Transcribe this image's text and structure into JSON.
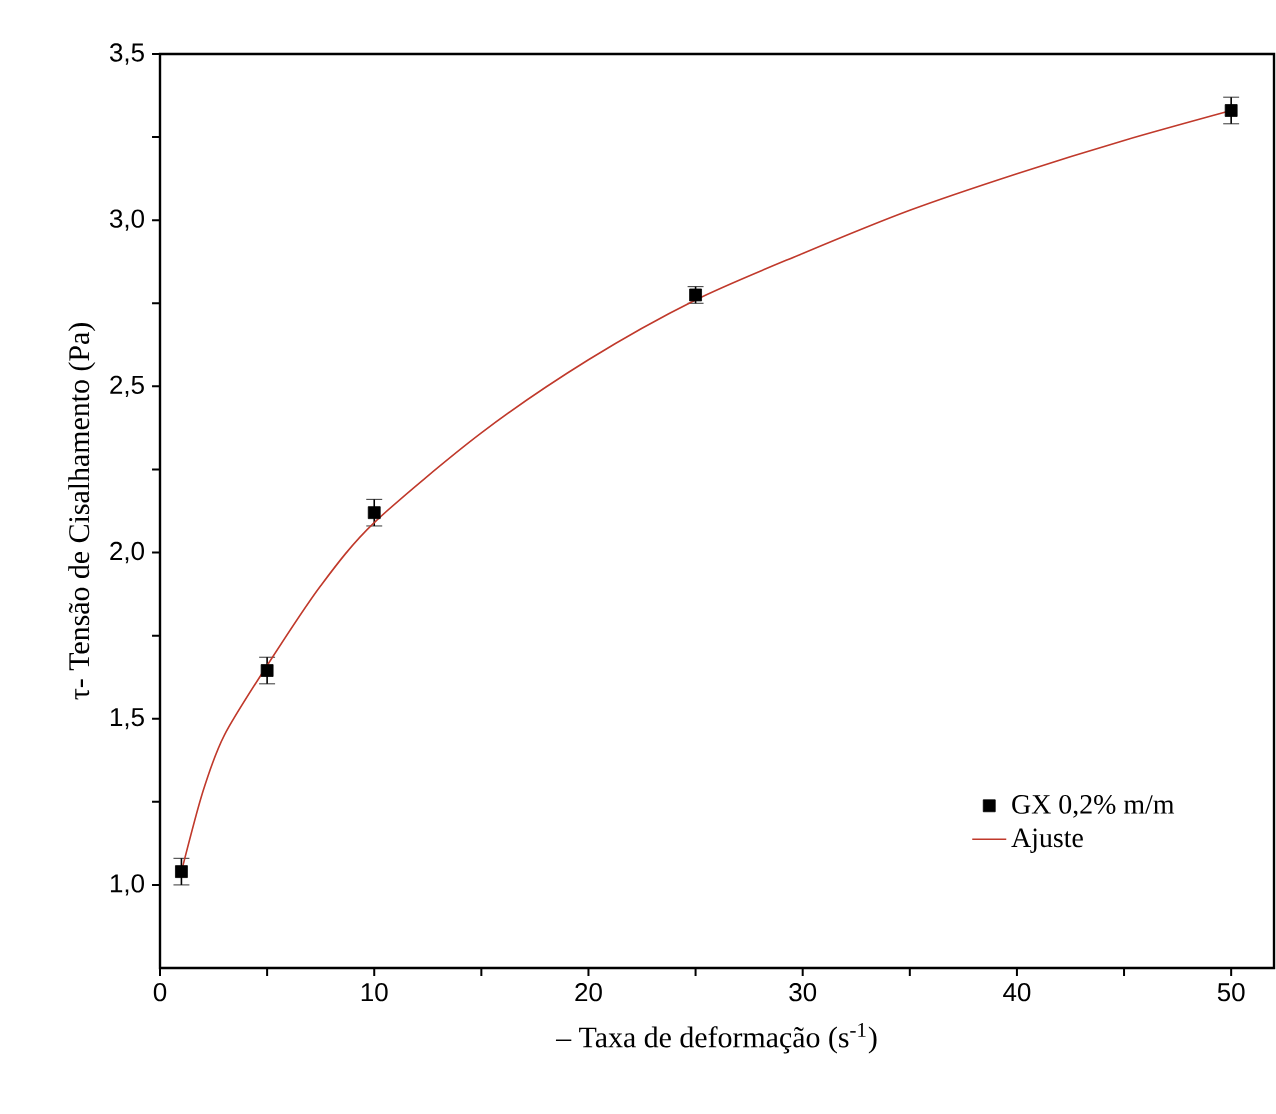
{
  "chart_data": {
    "type": "scatter",
    "xlabel": "– Taxa de deformação (s$^{-1}$)",
    "ylabel": "τ- Tensão de Cisalhamento (Pa)",
    "xlim": [
      0,
      52
    ],
    "ylim": [
      0.75,
      3.5
    ],
    "xticks": [
      0,
      {
        "value": 5,
        "label": null
      },
      10,
      {
        "value": 15,
        "label": null
      },
      20,
      {
        "value": 25,
        "label": null
      },
      30,
      {
        "value": 35,
        "label": null
      },
      40,
      {
        "value": 45,
        "label": null
      },
      50
    ],
    "yticks": [
      {
        "value": 1.0,
        "label": "1,0"
      },
      {
        "value": 1.25,
        "label": null
      },
      {
        "value": 1.5,
        "label": "1,5"
      },
      {
        "value": 1.75,
        "label": null
      },
      {
        "value": 2.0,
        "label": "2,0"
      },
      {
        "value": 2.25,
        "label": null
      },
      {
        "value": 2.5,
        "label": "2,5"
      },
      {
        "value": 2.75,
        "label": null
      },
      {
        "value": 3.0,
        "label": "3,0"
      },
      {
        "value": 3.25,
        "label": null
      },
      {
        "value": 3.5,
        "label": "3,5"
      }
    ],
    "legend": "bottom right",
    "grid": false,
    "series": [
      {
        "name": "GX 0,2% m/m",
        "marker": "square",
        "color": "#000000",
        "x": [
          1,
          5,
          10,
          25,
          50
        ],
        "values": [
          1.04,
          1.645,
          2.12,
          2.775,
          3.33
        ],
        "errors": [
          0.04,
          0.04,
          0.04,
          0.025,
          0.04
        ]
      },
      {
        "name": "Ajuste",
        "type": "line",
        "marker": "none",
        "line_style": "solid",
        "color": "#c0392b",
        "x": [
          1,
          2,
          3,
          5,
          7.5,
          10,
          15,
          20,
          25,
          30,
          35,
          40,
          45,
          50
        ],
        "values": [
          1.04,
          1.28,
          1.45,
          1.66,
          1.9,
          2.09,
          2.36,
          2.58,
          2.76,
          2.9,
          3.03,
          3.14,
          3.24,
          3.33
        ]
      }
    ]
  }
}
